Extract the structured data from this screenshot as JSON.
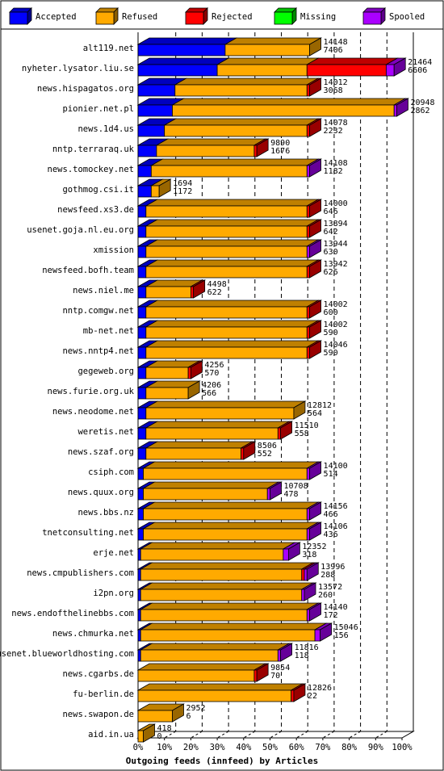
{
  "chart_data": {
    "type": "bar",
    "orientation": "horizontal",
    "stacked": true,
    "title": "",
    "xlabel": "Outgoing feeds (innfeed) by Articles",
    "ylabel": "",
    "xlim": [
      0,
      100
    ],
    "x_ticks": [
      "0%",
      "10%",
      "20%",
      "30%",
      "40%",
      "50%",
      "60%",
      "70%",
      "80%",
      "90%",
      "100%"
    ],
    "grid": true,
    "legend_position": "top",
    "series": [
      {
        "name": "Accepted",
        "color": "#0000ff"
      },
      {
        "name": "Refused",
        "color": "#ffaa00"
      },
      {
        "name": "Rejected",
        "color": "#ff0000"
      },
      {
        "name": "Missing",
        "color": "#00ff00"
      },
      {
        "name": "Spooled",
        "color": "#aa00ff"
      }
    ],
    "rows": [
      {
        "label": "alt119.net",
        "offered": "14148",
        "accepted": "7406",
        "segs": [
          33,
          32,
          0,
          0,
          0
        ]
      },
      {
        "label": "nyheter.lysator.liu.se",
        "offered": "21464",
        "accepted": "6606",
        "segs": [
          30,
          34,
          30,
          0,
          3
        ]
      },
      {
        "label": "news.hispagatos.org",
        "offered": "14012",
        "accepted": "3068",
        "segs": [
          14,
          50,
          1,
          0,
          0
        ]
      },
      {
        "label": "pionier.net.pl",
        "offered": "20948",
        "accepted": "2862",
        "segs": [
          13,
          84,
          0,
          0,
          1
        ]
      },
      {
        "label": "news.1d4.us",
        "offered": "14078",
        "accepted": "2232",
        "segs": [
          10,
          54,
          1,
          0,
          0
        ]
      },
      {
        "label": "nntp.terraraq.uk",
        "offered": "9890",
        "accepted": "1676",
        "segs": [
          7,
          37,
          1,
          0,
          0
        ]
      },
      {
        "label": "news.tomockey.net",
        "offered": "14108",
        "accepted": "1182",
        "segs": [
          5,
          59,
          0,
          0,
          1
        ]
      },
      {
        "label": "gothmog.csi.it",
        "offered": "1694",
        "accepted": "1172",
        "segs": [
          5,
          3,
          0,
          0,
          0
        ]
      },
      {
        "label": "newsfeed.xs3.de",
        "offered": "14000",
        "accepted": "646",
        "segs": [
          3,
          61,
          1,
          0,
          0
        ]
      },
      {
        "label": "usenet.goja.nl.eu.org",
        "offered": "13894",
        "accepted": "642",
        "segs": [
          3,
          61,
          1,
          0,
          0
        ]
      },
      {
        "label": "xmission",
        "offered": "13944",
        "accepted": "630",
        "segs": [
          3,
          61,
          0,
          0,
          1
        ]
      },
      {
        "label": "newsfeed.bofh.team",
        "offered": "13942",
        "accepted": "626",
        "segs": [
          3,
          61,
          1,
          0,
          0
        ]
      },
      {
        "label": "news.niel.me",
        "offered": "4498",
        "accepted": "622",
        "segs": [
          3,
          17,
          1,
          0,
          0
        ]
      },
      {
        "label": "nntp.comgw.net",
        "offered": "14002",
        "accepted": "600",
        "segs": [
          3,
          61,
          1,
          0,
          0
        ]
      },
      {
        "label": "mb-net.net",
        "offered": "14002",
        "accepted": "590",
        "segs": [
          3,
          61,
          1,
          0,
          0
        ]
      },
      {
        "label": "news.nntp4.net",
        "offered": "14046",
        "accepted": "590",
        "segs": [
          3,
          61,
          1,
          0,
          0
        ]
      },
      {
        "label": "gegeweb.org",
        "offered": "4256",
        "accepted": "570",
        "segs": [
          3,
          16,
          1,
          0,
          0
        ]
      },
      {
        "label": "news.furie.org.uk",
        "offered": "4206",
        "accepted": "566",
        "segs": [
          3,
          16,
          0,
          0,
          0
        ]
      },
      {
        "label": "news.neodome.net",
        "offered": "12812",
        "accepted": "564",
        "segs": [
          3,
          56,
          0,
          0,
          0
        ]
      },
      {
        "label": "weretis.net",
        "offered": "11510",
        "accepted": "558",
        "segs": [
          3,
          50,
          1,
          0,
          0
        ]
      },
      {
        "label": "news.szaf.org",
        "offered": "8506",
        "accepted": "552",
        "segs": [
          3,
          36,
          1,
          0,
          0
        ]
      },
      {
        "label": "csiph.com",
        "offered": "14100",
        "accepted": "514",
        "segs": [
          2,
          62,
          0,
          0,
          1
        ]
      },
      {
        "label": "news.quux.org",
        "offered": "10708",
        "accepted": "478",
        "segs": [
          2,
          47,
          0,
          0,
          1
        ]
      },
      {
        "label": "news.bbs.nz",
        "offered": "14156",
        "accepted": "466",
        "segs": [
          2,
          62,
          0,
          0,
          1
        ]
      },
      {
        "label": "tnetconsulting.net",
        "offered": "14106",
        "accepted": "436",
        "segs": [
          2,
          62,
          0,
          0,
          1
        ]
      },
      {
        "label": "erje.net",
        "offered": "12352",
        "accepted": "318",
        "segs": [
          1,
          54,
          0,
          0,
          2
        ]
      },
      {
        "label": "news.cmpublishers.com",
        "offered": "13996",
        "accepted": "288",
        "segs": [
          1,
          61,
          1,
          0,
          1
        ]
      },
      {
        "label": "i2pn.org",
        "offered": "13572",
        "accepted": "260",
        "segs": [
          1,
          61,
          0,
          0,
          1
        ]
      },
      {
        "label": "news.endofthelinebbs.com",
        "offered": "14140",
        "accepted": "172",
        "segs": [
          1,
          63,
          0,
          0,
          1
        ]
      },
      {
        "label": "news.chmurka.net",
        "offered": "15046",
        "accepted": "156",
        "segs": [
          1,
          66,
          0,
          0,
          2
        ]
      },
      {
        "label": "usenet.blueworldhosting.com",
        "offered": "11816",
        "accepted": "118",
        "segs": [
          1,
          52,
          0,
          0,
          1
        ]
      },
      {
        "label": "news.cgarbs.de",
        "offered": "9854",
        "accepted": "70",
        "segs": [
          0,
          44,
          1,
          0,
          0
        ]
      },
      {
        "label": "fu-berlin.de",
        "offered": "12826",
        "accepted": "22",
        "segs": [
          0,
          58,
          1,
          0,
          0
        ]
      },
      {
        "label": "news.swapon.de",
        "offered": "2952",
        "accepted": "6",
        "segs": [
          0,
          13,
          0,
          0,
          0
        ]
      },
      {
        "label": "aid.in.ua",
        "offered": "418",
        "accepted": "0",
        "segs": [
          0,
          2,
          0,
          0,
          0
        ]
      }
    ]
  }
}
